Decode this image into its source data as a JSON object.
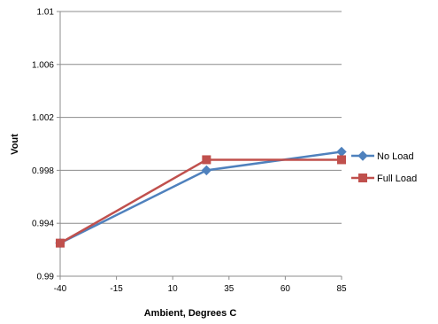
{
  "chart_data": {
    "type": "line",
    "title": "",
    "xlabel": "Ambient, Degrees C",
    "ylabel": "Vout",
    "x_ticks": [
      "-40",
      "-15",
      "10",
      "35",
      "60",
      "85"
    ],
    "y_ticks": [
      "0.99",
      "0.994",
      "0.998",
      "1.002",
      "1.006",
      "1.01"
    ],
    "xlim": [
      -40,
      85
    ],
    "ylim": [
      0.99,
      1.01
    ],
    "grid": "horizontal",
    "legend_position": "right",
    "series": [
      {
        "name": "No Load",
        "color": "#4F81BD",
        "marker": "diamond",
        "x": [
          -40,
          25,
          85
        ],
        "values": [
          0.9925,
          0.998,
          0.9994
        ]
      },
      {
        "name": "Full Load",
        "color": "#C0504D",
        "marker": "square",
        "x": [
          -40,
          25,
          85
        ],
        "values": [
          0.9925,
          0.9988,
          0.9988
        ]
      }
    ]
  }
}
